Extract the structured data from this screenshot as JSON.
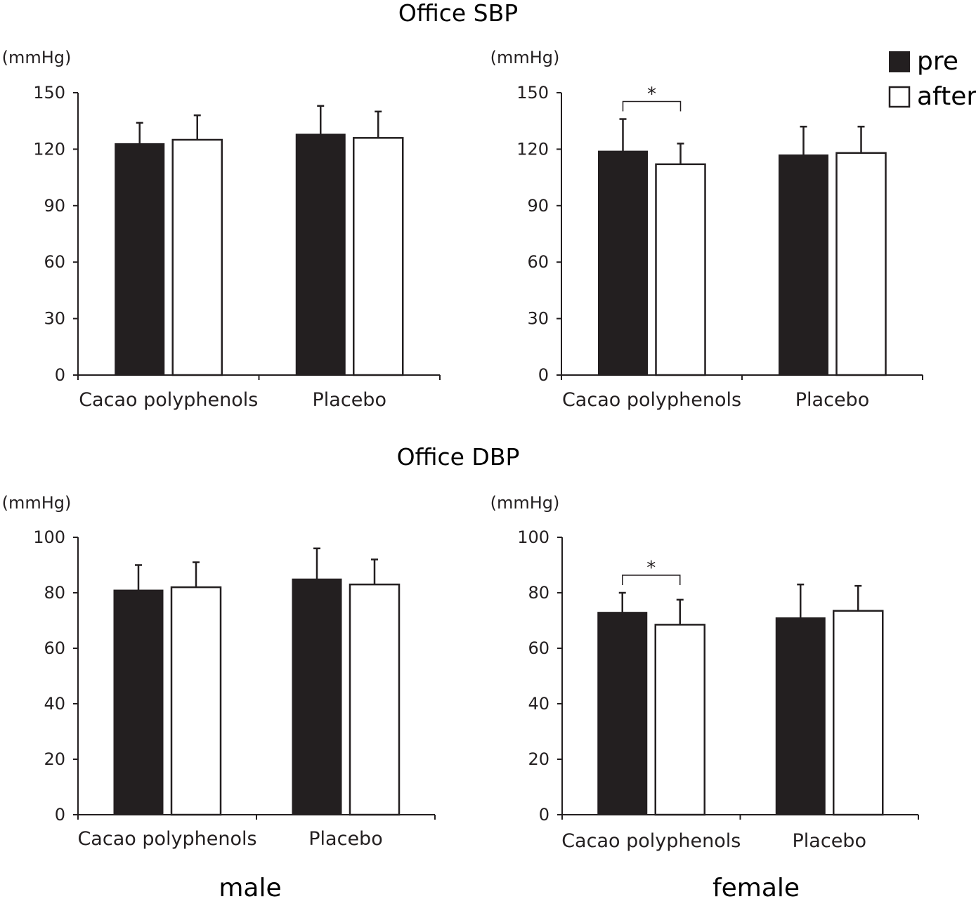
{
  "sections": {
    "sbp_title": "Office SBP",
    "dbp_title": "Office DBP",
    "male_label": "male",
    "female_label": "female"
  },
  "legend": {
    "items": [
      {
        "label": "pre",
        "color": "#231f20"
      },
      {
        "label": "after",
        "color": "#ffffff"
      }
    ]
  },
  "chart_data": [
    {
      "id": "sbp-male",
      "type": "bar",
      "title": "Office SBP",
      "panel": "male",
      "ylabel": "(mmHg)",
      "ylim": [
        0,
        150
      ],
      "yticks": [
        0,
        30,
        60,
        90,
        120,
        150
      ],
      "categories": [
        "Cacao polyphenols",
        "Placebo"
      ],
      "series": [
        {
          "name": "pre",
          "values": [
            123,
            128
          ],
          "errors": [
            11,
            15
          ]
        },
        {
          "name": "after",
          "values": [
            125,
            126
          ],
          "errors": [
            13,
            14
          ]
        }
      ],
      "annotations": []
    },
    {
      "id": "sbp-female",
      "type": "bar",
      "title": "Office SBP",
      "panel": "female",
      "ylabel": "(mmHg)",
      "ylim": [
        0,
        150
      ],
      "yticks": [
        0,
        30,
        60,
        90,
        120,
        150
      ],
      "categories": [
        "Cacao polyphenols",
        "Placebo"
      ],
      "series": [
        {
          "name": "pre",
          "values": [
            119,
            117
          ],
          "errors": [
            17,
            15
          ]
        },
        {
          "name": "after",
          "values": [
            112,
            118
          ],
          "errors": [
            11,
            14
          ]
        }
      ],
      "annotations": [
        {
          "text": "*",
          "category": "Cacao polyphenols"
        }
      ]
    },
    {
      "id": "dbp-male",
      "type": "bar",
      "title": "Office DBP",
      "panel": "male",
      "ylabel": "(mmHg)",
      "ylim": [
        0,
        100
      ],
      "yticks": [
        0,
        20,
        40,
        60,
        80,
        100
      ],
      "categories": [
        "Cacao polyphenols",
        "Placebo"
      ],
      "series": [
        {
          "name": "pre",
          "values": [
            81,
            85
          ],
          "errors": [
            9,
            11
          ]
        },
        {
          "name": "after",
          "values": [
            82,
            83
          ],
          "errors": [
            9,
            9
          ]
        }
      ],
      "annotations": []
    },
    {
      "id": "dbp-female",
      "type": "bar",
      "title": "Office DBP",
      "panel": "female",
      "ylabel": "(mmHg)",
      "ylim": [
        0,
        100
      ],
      "yticks": [
        0,
        20,
        40,
        60,
        80,
        100
      ],
      "categories": [
        "Cacao polyphenols",
        "Placebo"
      ],
      "series": [
        {
          "name": "pre",
          "values": [
            73,
            71
          ],
          "errors": [
            7,
            12
          ]
        },
        {
          "name": "after",
          "values": [
            68.5,
            73.5
          ],
          "errors": [
            9,
            9
          ]
        }
      ],
      "annotations": [
        {
          "text": "*",
          "category": "Cacao polyphenols"
        }
      ]
    }
  ]
}
